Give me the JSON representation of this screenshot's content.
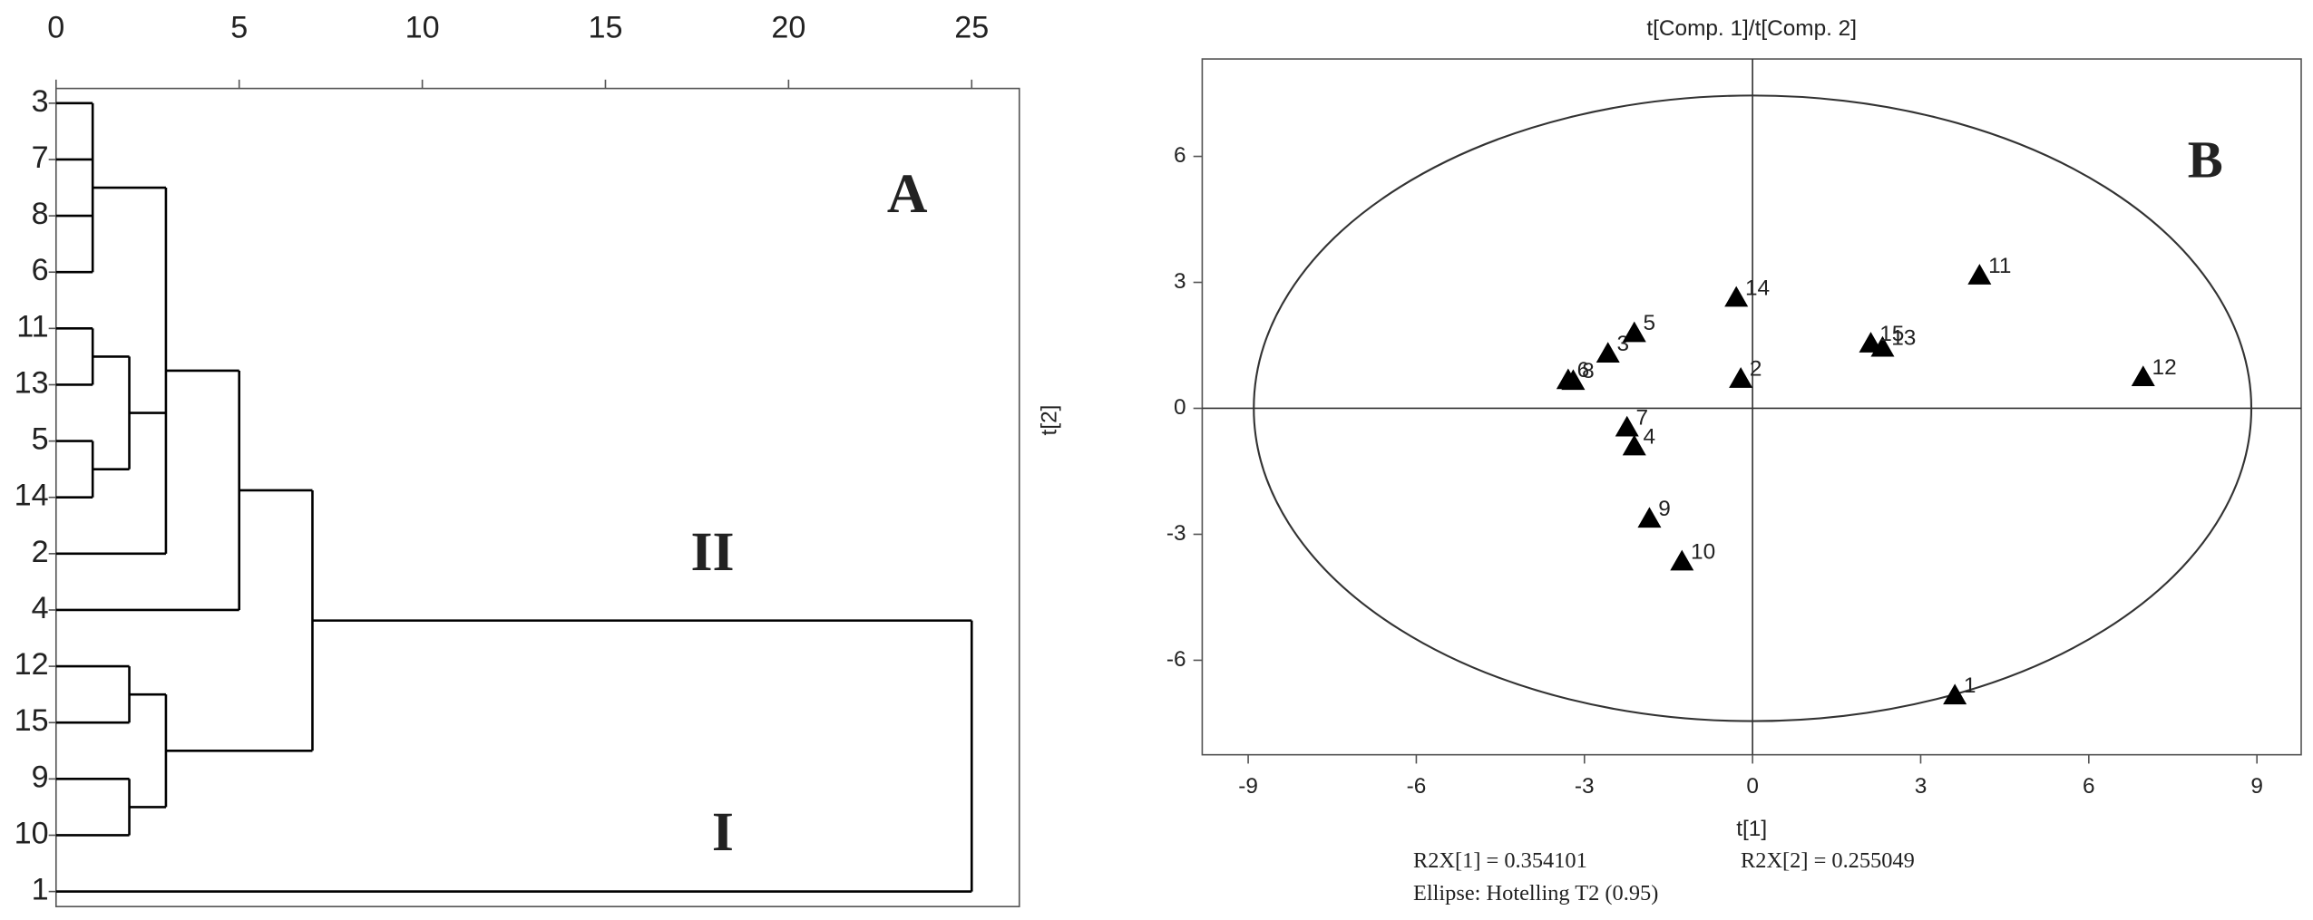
{
  "chart_data": [
    {
      "type": "dendrogram",
      "color": "#000000",
      "annotations": [
        "A",
        "II",
        "I"
      ],
      "xlim": [
        0,
        26.3
      ],
      "xticks": [
        0,
        5,
        10,
        15,
        20,
        25
      ],
      "tree": {
        "height": 25,
        "children": [
          {
            "height": 7,
            "children": [
              {
                "height": 5,
                "children": [
                  {
                    "height": 3,
                    "children": [
                      {
                        "height": 1,
                        "children": [
                          {
                            "label": "3"
                          },
                          {
                            "label": "7"
                          },
                          {
                            "label": "8"
                          },
                          {
                            "label": "6"
                          }
                        ]
                      },
                      {
                        "height": 2,
                        "children": [
                          {
                            "height": 1,
                            "children": [
                              {
                                "label": "11"
                              },
                              {
                                "label": "13"
                              }
                            ]
                          },
                          {
                            "height": 1,
                            "children": [
                              {
                                "label": "5"
                              },
                              {
                                "label": "14"
                              }
                            ]
                          }
                        ]
                      },
                      {
                        "label": "2"
                      }
                    ]
                  },
                  {
                    "label": "4"
                  }
                ]
              },
              {
                "height": 3,
                "children": [
                  {
                    "height": 2,
                    "children": [
                      {
                        "label": "12"
                      },
                      {
                        "label": "15"
                      }
                    ]
                  },
                  {
                    "height": 2,
                    "children": [
                      {
                        "label": "9"
                      },
                      {
                        "label": "10"
                      }
                    ]
                  }
                ]
              }
            ]
          },
          {
            "label": "1"
          }
        ]
      }
    },
    {
      "type": "scatter",
      "title": "t[Comp. 1]/t[Comp. 2]",
      "xlabel": "t[1]",
      "ylabel": "t[2]",
      "annotation": "B",
      "marker": "triangle",
      "color": "#000000",
      "x": [
        3.61,
        -0.21,
        -2.58,
        -2.11,
        -2.11,
        -3.29,
        -2.24,
        -3.2,
        -1.84,
        -1.26,
        4.05,
        6.97,
        2.32,
        -0.29,
        2.11
      ],
      "y": [
        -6.84,
        0.7,
        1.3,
        -0.91,
        1.79,
        0.67,
        -0.46,
        0.65,
        -2.63,
        -3.65,
        3.16,
        0.74,
        1.44,
        2.63,
        1.54
      ],
      "labels": [
        "1",
        "2",
        "3",
        "4",
        "5",
        "6",
        "7",
        "8",
        "9",
        "10",
        "11",
        "12",
        "13",
        "14",
        "15"
      ],
      "xlim": [
        -9.82,
        9.79
      ],
      "ylim": [
        -8.25,
        8.32
      ],
      "xticks": [
        -9,
        -6,
        -3,
        0,
        3,
        6,
        9
      ],
      "yticks": [
        -6,
        -3,
        0,
        3,
        6
      ],
      "ellipse_radii": [
        8.9,
        7.45
      ],
      "notes": [
        "R2X[1] = 0.354101",
        "R2X[2] = 0.255049",
        "Ellipse: Hotelling T2 (0.95)"
      ]
    }
  ]
}
